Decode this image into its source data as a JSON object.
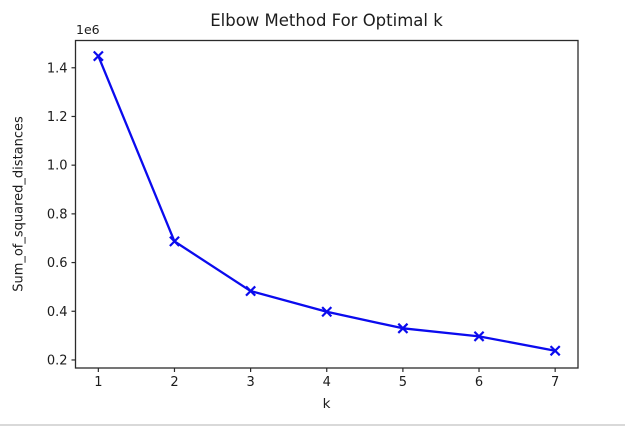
{
  "chart_data": {
    "type": "line",
    "title": "Elbow Method For Optimal k",
    "xlabel": "k",
    "ylabel": "Sum_of_squared_distances",
    "y_offset_text": "1e6",
    "x": [
      1,
      2,
      3,
      4,
      5,
      6,
      7
    ],
    "values": [
      1448000,
      687000,
      483000,
      398000,
      330000,
      297000,
      238000
    ],
    "xticks": [
      1,
      2,
      3,
      4,
      5,
      6,
      7
    ],
    "ytick_values": [
      200000,
      400000,
      600000,
      800000,
      1000000,
      1200000,
      1400000
    ],
    "ytick_labels": [
      "0.2",
      "0.4",
      "0.6",
      "0.8",
      "1.0",
      "1.2",
      "1.4"
    ],
    "xlim": [
      0.7,
      7.3
    ],
    "ylim": [
      167000,
      1512000
    ],
    "line_color": "#0b0bee",
    "marker": "x",
    "grid": false,
    "legend": null
  },
  "page": {
    "background_color": "#ffffff",
    "separator_color": "#d9d9d9",
    "spine_color": "#2b2b2b"
  }
}
